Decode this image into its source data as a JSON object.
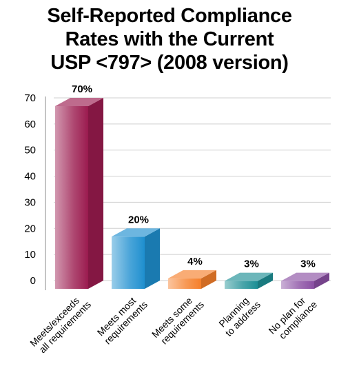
{
  "chart_data": {
    "type": "bar",
    "title_lines": [
      "Self-Reported Compliance",
      "Rates with the Current",
      "USP <797> (2008 version)"
    ],
    "categories": [
      [
        "Meets/exceeds",
        "all requirements"
      ],
      [
        "Meets most",
        "requirements"
      ],
      [
        "Meets some",
        "requirements"
      ],
      [
        "Planning",
        "to address"
      ],
      [
        "No plan for",
        "compliance"
      ]
    ],
    "values": [
      70,
      20,
      4,
      3,
      3
    ],
    "data_labels": [
      "70%",
      "20%",
      "4%",
      "3%",
      "3%"
    ],
    "yticks": [
      "0",
      "10",
      "20",
      "30",
      "40",
      "50",
      "60",
      "70"
    ],
    "ylim": [
      0,
      70
    ],
    "colors": [
      "#9b1b4f",
      "#1e8fcf",
      "#f57f2a",
      "#1d8f95",
      "#8a4fa3"
    ],
    "grid": true,
    "style": "3d-bars"
  }
}
